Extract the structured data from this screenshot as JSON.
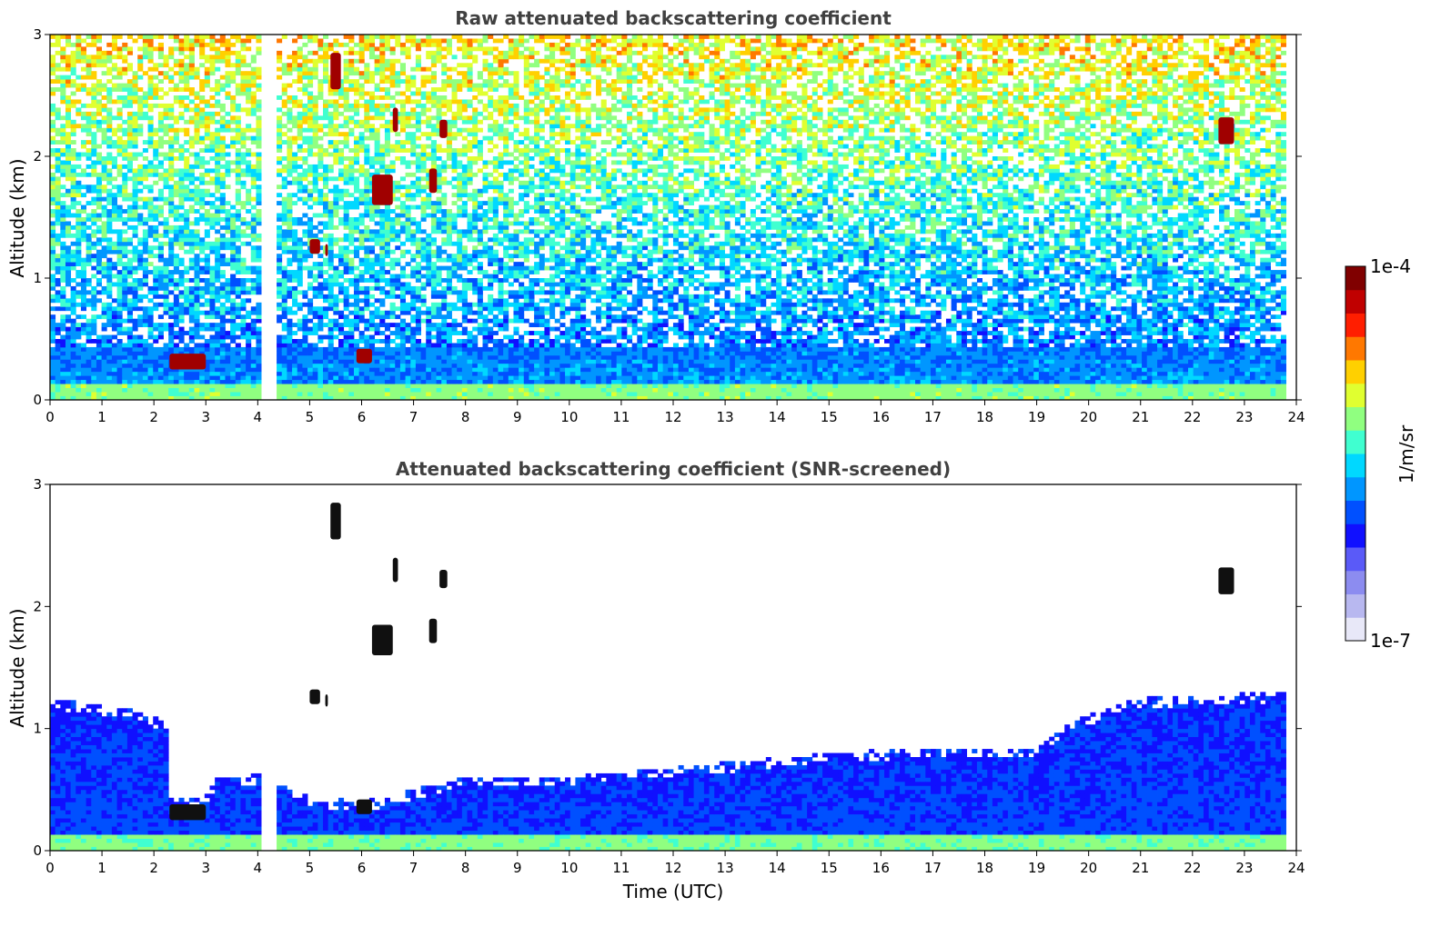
{
  "chart_data": [
    {
      "type": "heatmap",
      "title": "Raw attenuated backscattering coefficient",
      "xlabel": "",
      "ylabel": "Altitude (km)",
      "xlim": [
        0,
        24
      ],
      "ylim": [
        0,
        3
      ],
      "x_ticks": [
        "0",
        "1",
        "2",
        "3",
        "4",
        "5",
        "6",
        "7",
        "8",
        "9",
        "10",
        "11",
        "12",
        "13",
        "14",
        "15",
        "16",
        "17",
        "18",
        "19",
        "20",
        "21",
        "22",
        "23",
        "24"
      ],
      "y_ticks": [
        "0",
        "1",
        "2",
        "3"
      ],
      "data_end_hour": 23.8,
      "color_scale": "log10, jet colormap, 1e-7 to 1e-4 1/m/sr",
      "features": [
        {
          "description": "surface aerosol layer",
          "x_range": [
            0,
            23.8
          ],
          "top_km": 0.45
        },
        {
          "description": "low cloud layer",
          "x_range": [
            2.3,
            3.0
          ],
          "alt_km": 0.3
        },
        {
          "description": "low cloud layer",
          "x_range": [
            5.9,
            6.2
          ],
          "alt_km": 0.35
        },
        {
          "description": "cloud patches",
          "x_range": [
            5.0,
            7.6
          ],
          "alt_range_km": [
            1.2,
            2.9
          ]
        },
        {
          "description": "isolated cloud",
          "x_range": [
            22.5,
            22.8
          ],
          "alt_km": 2.2
        },
        {
          "description": "data gap",
          "x_range": [
            4.1,
            4.4
          ]
        }
      ]
    },
    {
      "type": "heatmap",
      "title": "Attenuated backscattering coefficient (SNR-screened)",
      "xlabel": "Time (UTC)",
      "ylabel": "Altitude (km)",
      "xlim": [
        0,
        24
      ],
      "ylim": [
        0,
        3
      ],
      "x_ticks": [
        "0",
        "1",
        "2",
        "3",
        "4",
        "5",
        "6",
        "7",
        "8",
        "9",
        "10",
        "11",
        "12",
        "13",
        "14",
        "15",
        "16",
        "17",
        "18",
        "19",
        "20",
        "21",
        "22",
        "23",
        "24"
      ],
      "y_ticks": [
        "0",
        "1",
        "2",
        "3"
      ],
      "data_end_hour": 23.8,
      "boundary_layer_top_km": [
        [
          0,
          1.25
        ],
        [
          1.6,
          1.15
        ],
        [
          2.25,
          1.05
        ],
        [
          2.3,
          0.45
        ],
        [
          3.0,
          0.45
        ],
        [
          3.2,
          0.6
        ],
        [
          4.0,
          0.62
        ],
        [
          5.0,
          0.45
        ],
        [
          6.0,
          0.4
        ],
        [
          7.0,
          0.5
        ],
        [
          8.0,
          0.6
        ],
        [
          10.0,
          0.6
        ],
        [
          11.0,
          0.65
        ],
        [
          13.0,
          0.72
        ],
        [
          15.0,
          0.8
        ],
        [
          17.0,
          0.85
        ],
        [
          19.0,
          0.85
        ],
        [
          19.6,
          1.05
        ],
        [
          21.0,
          1.25
        ],
        [
          23.8,
          1.3
        ]
      ]
    }
  ],
  "colorbar": {
    "label": "1/m/sr",
    "max_label": "1e-4",
    "min_label": "1e-7",
    "colors": [
      "#e8e8f8",
      "#b8b8f0",
      "#8c8cf0",
      "#5a5af8",
      "#1010ff",
      "#0050ff",
      "#0096ff",
      "#00d8ff",
      "#40ffd0",
      "#90ff80",
      "#e0ff30",
      "#ffd000",
      "#ff7800",
      "#ff1e00",
      "#c00000",
      "#800000"
    ]
  }
}
